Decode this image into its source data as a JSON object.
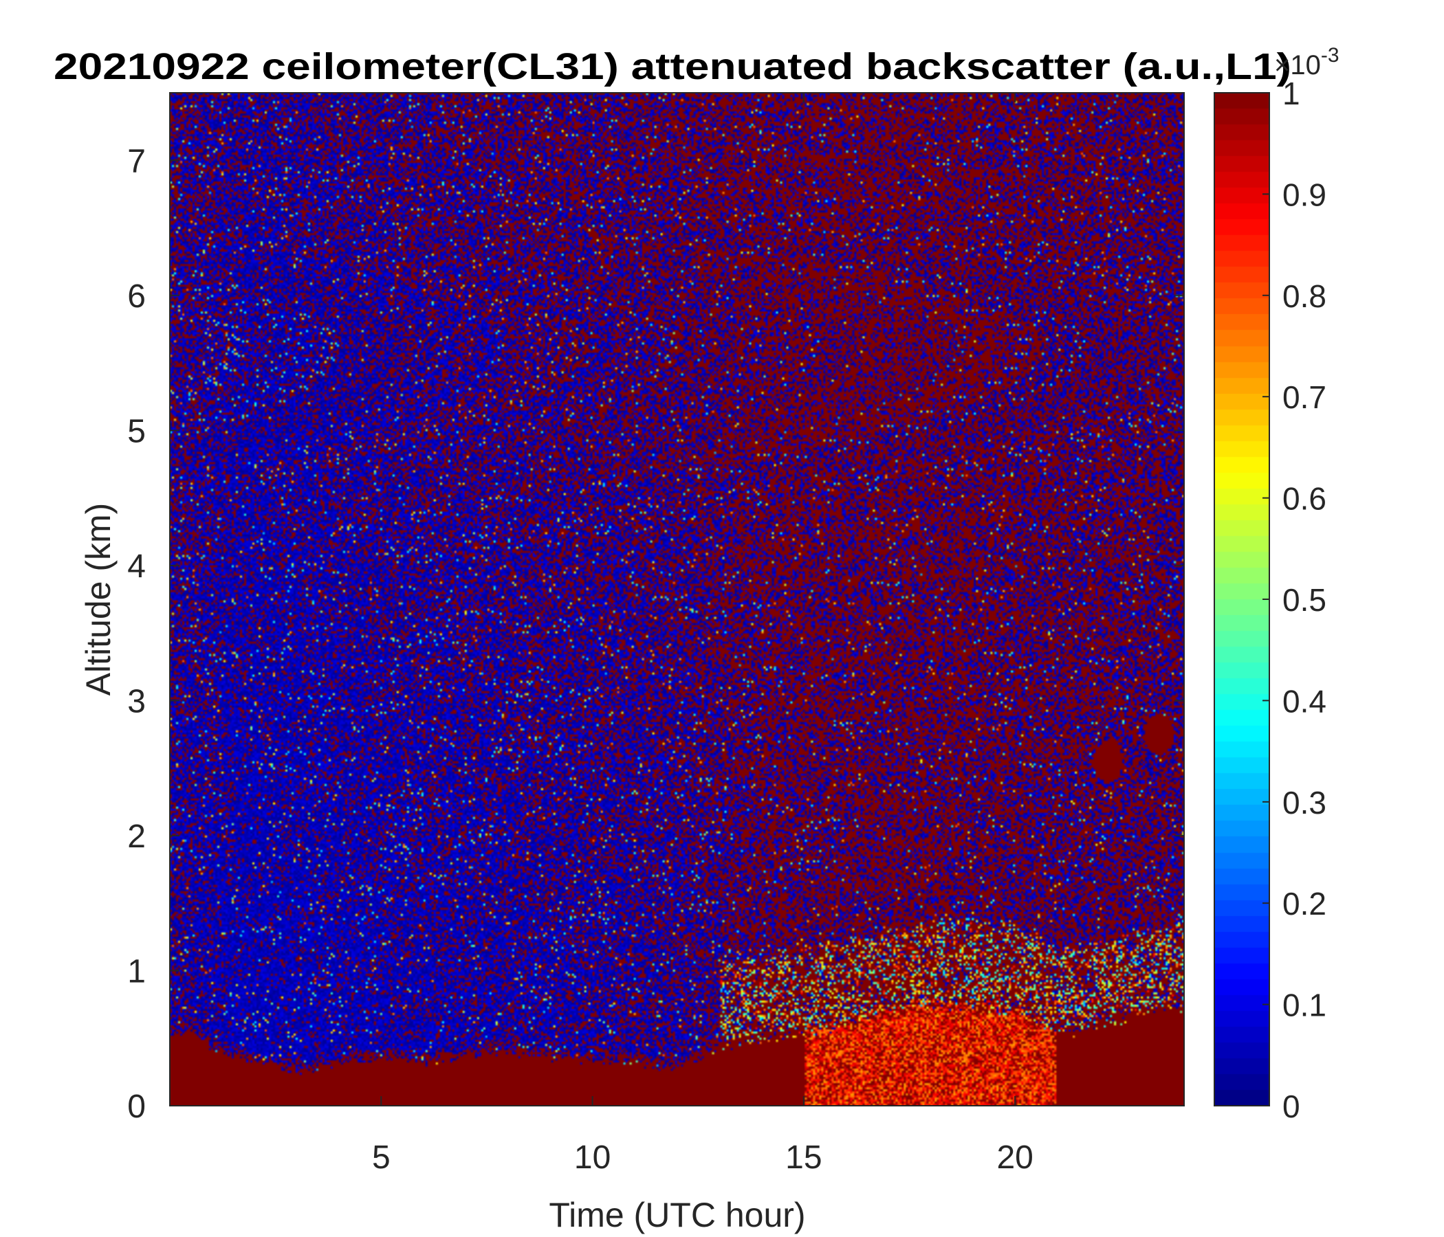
{
  "chart_data": {
    "type": "heatmap",
    "title": "20210922 ceilometer(CL31) attenuated backscatter (a.u.,L1)",
    "xlabel": "Time (UTC hour)",
    "ylabel": "Altitude (km)",
    "xlim": [
      0,
      24
    ],
    "ylim": [
      0,
      7.5
    ],
    "xticks": [
      5,
      10,
      15,
      20
    ],
    "yticks": [
      0,
      1,
      2,
      3,
      4,
      5,
      6,
      7
    ],
    "colorbar": {
      "label_multiplier": "×10",
      "label_exponent": "-3",
      "clim": [
        0,
        1
      ],
      "ticks": [
        0,
        0.1,
        0.2,
        0.3,
        0.4,
        0.5,
        0.6,
        0.7,
        0.8,
        0.9,
        1
      ],
      "tick_labels": [
        "0",
        "0.1",
        "0.2",
        "0.3",
        "0.4",
        "0.5",
        "0.6",
        "0.7",
        "0.8",
        "0.9",
        "1"
      ],
      "colormap": "jet"
    },
    "field_description": {
      "boundary_layer_top_km": [
        {
          "hour": 0.0,
          "km": 0.55
        },
        {
          "hour": 0.5,
          "km": 0.6
        },
        {
          "hour": 1.0,
          "km": 0.45
        },
        {
          "hour": 2.0,
          "km": 0.35
        },
        {
          "hour": 3.0,
          "km": 0.28
        },
        {
          "hour": 4.0,
          "km": 0.35
        },
        {
          "hour": 5.0,
          "km": 0.38
        },
        {
          "hour": 6.0,
          "km": 0.35
        },
        {
          "hour": 7.0,
          "km": 0.4
        },
        {
          "hour": 8.0,
          "km": 0.42
        },
        {
          "hour": 9.0,
          "km": 0.38
        },
        {
          "hour": 10.0,
          "km": 0.35
        },
        {
          "hour": 11.0,
          "km": 0.35
        },
        {
          "hour": 12.0,
          "km": 0.3
        },
        {
          "hour": 13.0,
          "km": 0.45
        },
        {
          "hour": 14.0,
          "km": 0.5
        },
        {
          "hour": 15.0,
          "km": 0.55
        },
        {
          "hour": 16.0,
          "km": 0.6
        },
        {
          "hour": 17.0,
          "km": 0.7
        },
        {
          "hour": 18.0,
          "km": 0.75
        },
        {
          "hour": 19.0,
          "km": 0.75
        },
        {
          "hour": 20.0,
          "km": 0.7
        },
        {
          "hour": 21.0,
          "km": 0.55
        },
        {
          "hour": 22.0,
          "km": 0.6
        },
        {
          "hour": 23.0,
          "km": 0.7
        },
        {
          "hour": 24.0,
          "km": 0.75
        }
      ],
      "noise_red_fraction_by_hour": [
        {
          "hour": 0,
          "low_alt": 0.25,
          "high_alt": 0.45
        },
        {
          "hour": 2,
          "low_alt": 0.05,
          "high_alt": 0.3
        },
        {
          "hour": 6,
          "low_alt": 0.15,
          "high_alt": 0.45
        },
        {
          "hour": 12,
          "low_alt": 0.3,
          "high_alt": 0.55
        },
        {
          "hour": 14,
          "low_alt": 0.55,
          "high_alt": 0.65
        },
        {
          "hour": 18,
          "low_alt": 0.6,
          "high_alt": 0.65
        },
        {
          "hour": 24,
          "low_alt": 0.5,
          "high_alt": 0.55
        }
      ],
      "enhanced_region": {
        "hours": [
          15,
          21
        ],
        "altitude_km": [
          0,
          0.9
        ],
        "peak_value": 0.7
      },
      "cloud_patches": [
        {
          "hour": 22.2,
          "km": 2.55,
          "value": 1
        },
        {
          "hour": 23.4,
          "km": 2.75,
          "value": 1
        }
      ]
    }
  }
}
